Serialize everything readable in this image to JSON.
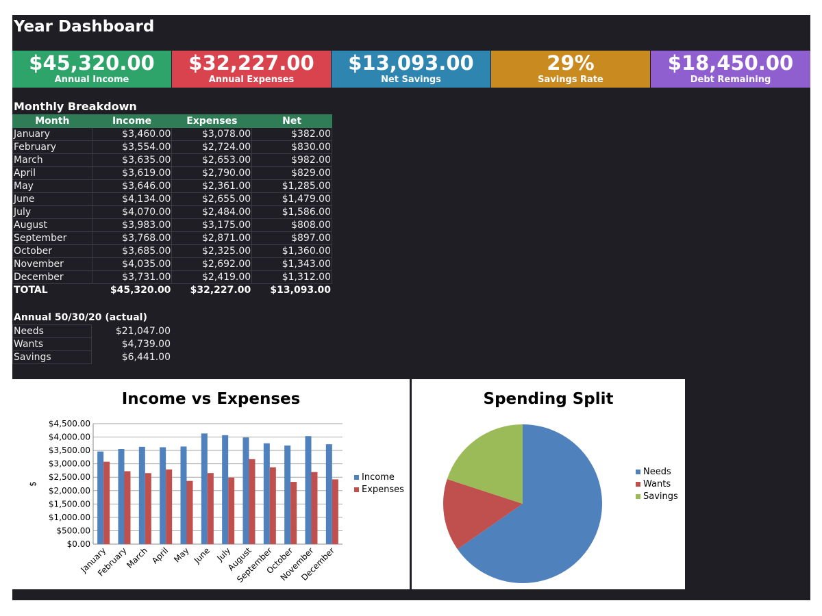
{
  "title": "Year Dashboard",
  "kpis": [
    {
      "value": "$45,320.00",
      "label": "Annual Income",
      "color": "#2ea36a"
    },
    {
      "value": "$32,227.00",
      "label": "Annual Expenses",
      "color": "#d9434e"
    },
    {
      "value": "$13,093.00",
      "label": "Net Savings",
      "color": "#2e86b0"
    },
    {
      "value": "29%",
      "label": "Savings Rate",
      "color": "#c98a20"
    },
    {
      "value": "$18,450.00",
      "label": "Debt Remaining",
      "color": "#8f5fd0"
    }
  ],
  "monthly": {
    "title": "Monthly Breakdown",
    "headers": [
      "Month",
      "Income",
      "Expenses",
      "Net"
    ],
    "rows": [
      [
        "January",
        "$3,460.00",
        "$3,078.00",
        "$382.00"
      ],
      [
        "February",
        "$3,554.00",
        "$2,724.00",
        "$830.00"
      ],
      [
        "March",
        "$3,635.00",
        "$2,653.00",
        "$982.00"
      ],
      [
        "April",
        "$3,619.00",
        "$2,790.00",
        "$829.00"
      ],
      [
        "May",
        "$3,646.00",
        "$2,361.00",
        "$1,285.00"
      ],
      [
        "June",
        "$4,134.00",
        "$2,655.00",
        "$1,479.00"
      ],
      [
        "July",
        "$4,070.00",
        "$2,484.00",
        "$1,586.00"
      ],
      [
        "August",
        "$3,983.00",
        "$3,175.00",
        "$808.00"
      ],
      [
        "September",
        "$3,768.00",
        "$2,871.00",
        "$897.00"
      ],
      [
        "October",
        "$3,685.00",
        "$2,325.00",
        "$1,360.00"
      ],
      [
        "November",
        "$4,035.00",
        "$2,692.00",
        "$1,343.00"
      ],
      [
        "December",
        "$3,731.00",
        "$2,419.00",
        "$1,312.00"
      ]
    ],
    "total": [
      "TOTAL",
      "$45,320.00",
      "$32,227.00",
      "$13,093.00"
    ]
  },
  "split": {
    "title": "Annual 50/30/20 (actual)",
    "rows": [
      [
        "Needs",
        "$21,047.00"
      ],
      [
        "Wants",
        "$4,739.00"
      ],
      [
        "Savings",
        "$6,441.00"
      ]
    ]
  },
  "chart_data": [
    {
      "type": "bar",
      "title": "Income vs Expenses",
      "xlabel": "",
      "ylabel": "$",
      "ylim": [
        0,
        4500
      ],
      "yticks": [
        "$0.00",
        "$500.00",
        "$1,000.00",
        "$1,500.00",
        "$2,000.00",
        "$2,500.00",
        "$3,000.00",
        "$3,500.00",
        "$4,000.00",
        "$4,500.00"
      ],
      "categories": [
        "January",
        "February",
        "March",
        "April",
        "May",
        "June",
        "July",
        "August",
        "September",
        "October",
        "November",
        "December"
      ],
      "series": [
        {
          "name": "Income",
          "color": "#4f81bd",
          "values": [
            3460,
            3554,
            3635,
            3619,
            3646,
            4134,
            4070,
            3983,
            3768,
            3685,
            4035,
            3731
          ]
        },
        {
          "name": "Expenses",
          "color": "#c0504d",
          "values": [
            3078,
            2724,
            2653,
            2790,
            2361,
            2655,
            2484,
            3175,
            2871,
            2325,
            2692,
            2419
          ]
        }
      ],
      "legend": "right",
      "grid": true
    },
    {
      "type": "pie",
      "title": "Spending Split",
      "categories": [
        "Needs",
        "Wants",
        "Savings"
      ],
      "values": [
        21047,
        4739,
        6441
      ],
      "colors": [
        "#4f81bd",
        "#c0504d",
        "#9bbb59"
      ],
      "legend": "right"
    }
  ]
}
